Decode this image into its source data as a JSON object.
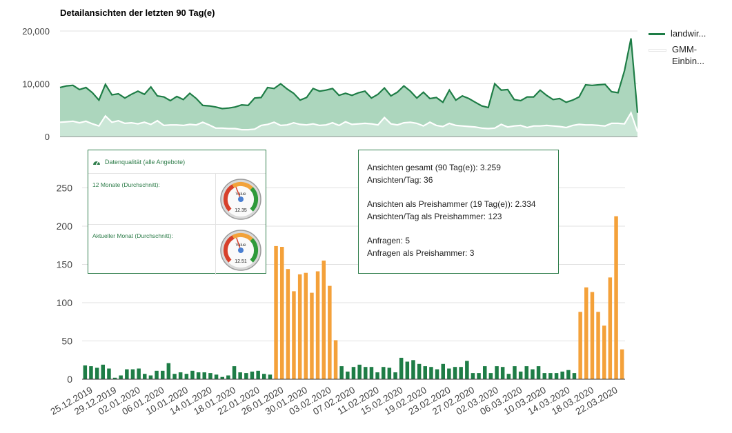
{
  "top_chart": {
    "title": "Detailansichten der letzten 90 Tag(e)",
    "legend": [
      {
        "label": "landwir...",
        "color": "#1e7d46"
      },
      {
        "label": "GMM-Einbin...",
        "color": "#ffffff"
      }
    ]
  },
  "quality_panel": {
    "title": "Datenqualität (alle Angebote)",
    "rows": [
      {
        "label": "12 Monate (Durchschnitt):",
        "gauge_value": "12.35",
        "gauge_caption": "Value",
        "level": 0.42
      },
      {
        "label": "Aktueller Monat (Durchschnitt):",
        "gauge_value": "12.51",
        "gauge_caption": "Value",
        "level": 0.43
      }
    ]
  },
  "stats_panel": {
    "line1": "Ansichten gesamt (90 Tag(e)): 3.259",
    "line2": "Ansichten/Tag: 36",
    "line3": "Ansichten als Preishammer (19 Tag(e)): 2.334",
    "line4": "Ansichten/Tag als Preishammer: 123",
    "line5": "Anfragen: 5",
    "line6": "Anfragen als Preishammer: 3"
  },
  "chart_data": [
    {
      "type": "area",
      "title": "Detailansichten der letzten 90 Tag(e)",
      "ylim": [
        0,
        20000
      ],
      "yticks": [
        "0",
        "10,000",
        "20,000"
      ],
      "grid": true,
      "legend_position": "right",
      "series": [
        {
          "name": "landwir...",
          "color": "#1e7d46",
          "values": [
            9300,
            9600,
            9700,
            8900,
            9300,
            8300,
            6900,
            9900,
            7900,
            8100,
            7300,
            8000,
            8600,
            8000,
            9400,
            7700,
            7500,
            6800,
            7600,
            7000,
            8200,
            7200,
            5900,
            5800,
            5600,
            5300,
            5400,
            5600,
            6000,
            5900,
            7300,
            7400,
            9300,
            9100,
            10000,
            9000,
            8200,
            6900,
            7400,
            9100,
            8600,
            8800,
            9100,
            7800,
            8200,
            7800,
            8300,
            8600,
            7300,
            8000,
            9200,
            7700,
            8400,
            9600,
            8600,
            7300,
            8400,
            7200,
            7400,
            6500,
            8800,
            6900,
            7700,
            7200,
            6500,
            5800,
            5500,
            10000,
            8800,
            8900,
            7000,
            6800,
            7500,
            7500,
            8800,
            7800,
            7000,
            7200,
            6500,
            6900,
            7500,
            9800,
            9700,
            9800,
            9900,
            8500,
            8300,
            12500,
            18600,
            4500
          ]
        },
        {
          "name": "GMM-Einbin...",
          "color": "#ffffff",
          "values": [
            2700,
            2800,
            2900,
            2600,
            2900,
            2400,
            2000,
            3900,
            2700,
            3000,
            2500,
            2600,
            2400,
            2700,
            2300,
            3000,
            2100,
            2200,
            2200,
            2100,
            2300,
            2200,
            2700,
            2200,
            1600,
            1600,
            1500,
            1500,
            1300,
            1300,
            1400,
            2100,
            2300,
            2700,
            2100,
            2200,
            2600,
            2300,
            2200,
            2400,
            2100,
            2200,
            2600,
            2100,
            2800,
            2300,
            2400,
            2500,
            2400,
            2200,
            3600,
            2400,
            2200,
            2600,
            2700,
            2500,
            2000,
            2700,
            2100,
            1900,
            2500,
            2100,
            2000,
            1900,
            1800,
            1600,
            1500,
            1600,
            2300,
            1800,
            2000,
            2100,
            1700,
            2000,
            2000,
            2100,
            2000,
            1900,
            1700,
            2100,
            2300,
            2200,
            2200,
            2100,
            2000,
            2500,
            2500,
            2400,
            4500,
            900
          ]
        }
      ]
    },
    {
      "type": "bar",
      "ylim": [
        0,
        270
      ],
      "yticks": [
        "0",
        "50",
        "100",
        "150",
        "200",
        "250"
      ],
      "grid": true,
      "colors": {
        "normal": "#1e7d46",
        "preishammer": "#f4a13a"
      },
      "x_tick_labels": [
        "25.12.2019",
        "29.12.2019",
        "02.01.2020",
        "06.01.2020",
        "10.01.2020",
        "14.01.2020",
        "18.01.2020",
        "22.01.2020",
        "26.01.2020",
        "30.01.2020",
        "03.02.2020",
        "07.02.2020",
        "11.02.2020",
        "15.02.2020",
        "19.02.2020",
        "23.02.2020",
        "27.02.2020",
        "02.03.2020",
        "06.03.2020",
        "10.03.2020",
        "14.03.2020",
        "18.03.2020",
        "22.03.2020"
      ],
      "values": [
        18,
        17,
        15,
        19,
        14,
        2,
        5,
        13,
        13,
        14,
        7,
        5,
        11,
        11,
        21,
        7,
        9,
        7,
        11,
        9,
        9,
        8,
        6,
        3,
        5,
        17,
        9,
        8,
        10,
        11,
        7,
        6,
        174,
        173,
        144,
        115,
        137,
        139,
        113,
        141,
        155,
        122,
        51,
        17,
        10,
        16,
        19,
        16,
        16,
        9,
        16,
        15,
        9,
        28,
        23,
        25,
        20,
        17,
        16,
        13,
        20,
        14,
        16,
        16,
        24,
        8,
        8,
        17,
        8,
        17,
        16,
        7,
        17,
        10,
        17,
        13,
        17,
        8,
        8,
        8,
        10,
        12,
        8,
        88,
        120,
        114,
        88,
        70,
        133,
        213,
        39
      ],
      "preishammer_days": [
        32,
        33,
        34,
        35,
        36,
        37,
        38,
        39,
        40,
        41,
        42,
        83,
        84,
        85,
        86,
        87,
        88,
        89,
        90
      ]
    }
  ]
}
